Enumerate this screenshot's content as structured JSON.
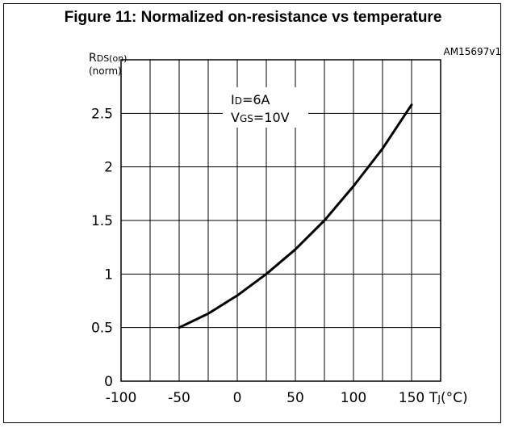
{
  "figure": {
    "title": "Figure 11: Normalized on-resistance vs temperature",
    "code": "AM15697v1"
  },
  "chart_data": {
    "type": "line",
    "title": "Figure 11: Normalized on-resistance vs temperature",
    "ylabel": {
      "main": "R",
      "sub": "DS(on)",
      "unit": "(norm)"
    },
    "xlabel": {
      "main": "T",
      "sub": "J",
      "unit": "(°C)"
    },
    "xlim": [
      -100,
      175
    ],
    "ylim": [
      0,
      3
    ],
    "x_ticks": [
      -100,
      -50,
      0,
      50,
      100,
      150
    ],
    "x_tick_labels": [
      "-100",
      "-50",
      "0",
      "50",
      "100",
      "150"
    ],
    "y_ticks": [
      0,
      0.5,
      1,
      1.5,
      2,
      2.5
    ],
    "y_tick_labels": [
      "0",
      "0.5",
      "1",
      "1.5",
      "2",
      "2.5"
    ],
    "grid": true,
    "annotation": {
      "line1": {
        "main": "I",
        "sub": "D",
        "value": "=6A"
      },
      "line2": {
        "main": "V",
        "sub": "GS",
        "value": "=10V"
      }
    },
    "series": [
      {
        "x": [
          -50,
          -25,
          0,
          25,
          50,
          75,
          100,
          125,
          150
        ],
        "y": [
          0.5,
          0.63,
          0.8,
          1.0,
          1.23,
          1.5,
          1.82,
          2.17,
          2.58
        ]
      }
    ],
    "colors": {
      "line": "#000000",
      "grid": "#000000"
    }
  }
}
